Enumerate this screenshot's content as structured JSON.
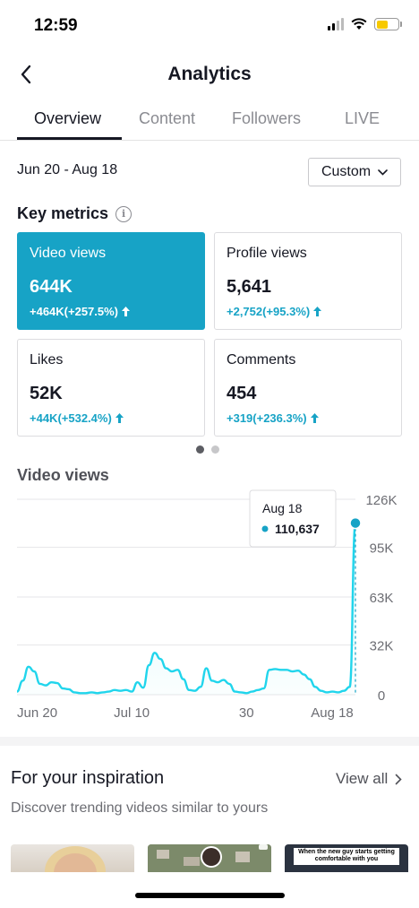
{
  "status_bar": {
    "time": "12:59",
    "icons": [
      "cellular-signal-icon",
      "wifi-icon",
      "battery-icon"
    ],
    "battery_color": "#f7c900"
  },
  "header": {
    "back_icon": "chevron-left-icon",
    "title": "Analytics"
  },
  "tabs": [
    {
      "label": "Overview",
      "active": true
    },
    {
      "label": "Content",
      "active": false
    },
    {
      "label": "Followers",
      "active": false
    },
    {
      "label": "LIVE",
      "active": false
    }
  ],
  "date_range": {
    "label": "Jun 20 - Aug 18",
    "selector_label": "Custom"
  },
  "key_metrics": {
    "title": "Key metrics",
    "cards": [
      {
        "label": "Video views",
        "value": "644K",
        "change": "+464K(+257.5%)",
        "active": true
      },
      {
        "label": "Profile views",
        "value": "5,641",
        "change": "+2,752(+95.3%)",
        "active": false
      },
      {
        "label": "Likes",
        "value": "52K",
        "change": "+44K(+532.4%)",
        "active": false
      },
      {
        "label": "Comments",
        "value": "454",
        "change": "+319(+236.3%)",
        "active": false
      }
    ],
    "page_indicator": {
      "current": 1,
      "total": 2
    }
  },
  "video_views_section": {
    "title": "Video views"
  },
  "chart_data": {
    "type": "area",
    "ylabels": [
      "126K",
      "95K",
      "63K",
      "32K",
      "0"
    ],
    "yticks": [
      126000,
      95000,
      63000,
      32000,
      0
    ],
    "ylim": [
      0,
      126000
    ],
    "xlabels": [
      "Jun 20",
      "Jul 10",
      "30",
      "Aug 18"
    ],
    "xlabel_indices": [
      0,
      20,
      40,
      59
    ],
    "values": [
      2000,
      9000,
      18000,
      15000,
      7000,
      6000,
      8000,
      7500,
      4000,
      3500,
      1500,
      1000,
      1000,
      1500,
      1000,
      1500,
      2000,
      3000,
      2500,
      3000,
      2000,
      8000,
      4500,
      19000,
      27000,
      23000,
      17000,
      15000,
      16000,
      10000,
      3000,
      2500,
      5000,
      17000,
      9000,
      8000,
      9500,
      7000,
      2000,
      1500,
      1000,
      2000,
      3000,
      4000,
      16000,
      16500,
      16000,
      16000,
      15000,
      15500,
      13000,
      10000,
      5000,
      2500,
      1500,
      2000,
      1500,
      2500,
      5000,
      110637
    ],
    "color": "#20d5ec",
    "tooltip": {
      "date": "Aug 18",
      "value": "110,637"
    }
  },
  "inspiration": {
    "title": "For your inspiration",
    "view_all": "View all",
    "subtitle": "Discover trending videos similar to yours",
    "thumb3_caption": "When the new guy starts getting comfortable with you"
  }
}
